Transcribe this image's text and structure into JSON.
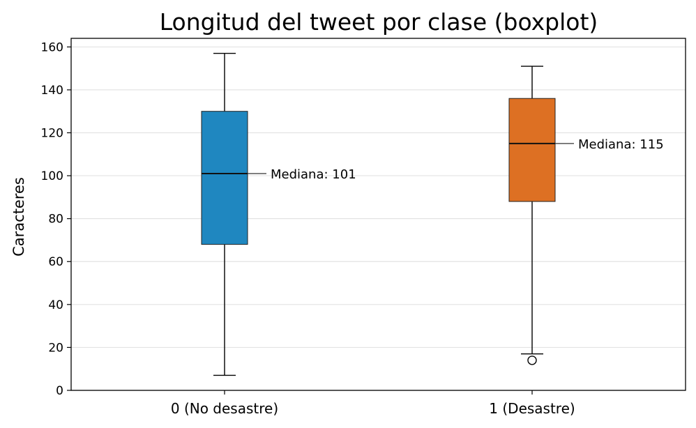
{
  "chart_data": {
    "type": "boxplot",
    "title": "Longitud del tweet por clase (boxplot)",
    "xlabel": "",
    "ylabel": "Caracteres",
    "ylim": [
      0,
      164
    ],
    "yticks": [
      0,
      20,
      40,
      60,
      80,
      100,
      120,
      140,
      160
    ],
    "grid": "horizontal",
    "categories": [
      "0 (No desastre)",
      "1 (Desastre)"
    ],
    "boxes": [
      {
        "category": "0 (No desastre)",
        "whisker_low": 7,
        "q1": 68,
        "median": 101,
        "q3": 130,
        "whisker_high": 157,
        "outliers": [],
        "color": "#1f87c0",
        "annotation": "Mediana: 101"
      },
      {
        "category": "1 (Desastre)",
        "whisker_low": 17,
        "q1": 88,
        "median": 115,
        "q3": 136,
        "whisker_high": 151,
        "outliers": [
          14
        ],
        "color": "#dd7023",
        "annotation": "Mediana: 115"
      }
    ]
  }
}
